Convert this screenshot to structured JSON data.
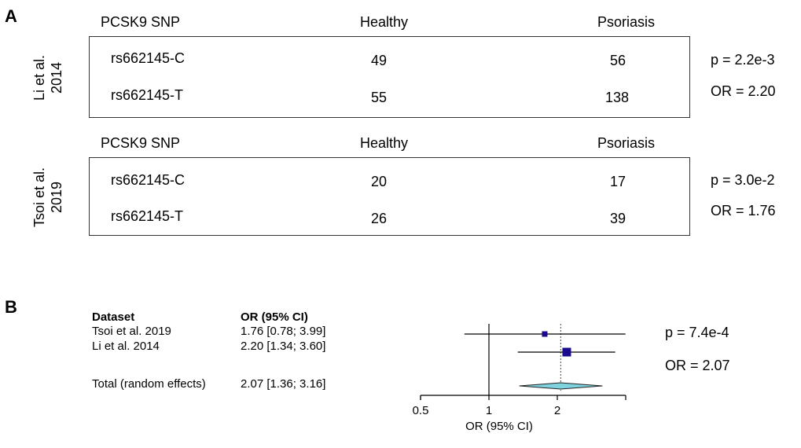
{
  "panel_a": {
    "letter": "A",
    "studies": [
      {
        "label_line1": "Li et al.",
        "label_line2": "2014",
        "col_snp": "PCSK9 SNP",
        "col_healthy": "Healthy",
        "col_psoriasis": "Psoriasis",
        "rows": [
          {
            "snp": "rs662145-C",
            "healthy": "49",
            "psoriasis": "56"
          },
          {
            "snp": "rs662145-T",
            "healthy": "55",
            "psoriasis": "138"
          }
        ],
        "p_text": "p = 2.2e-3",
        "or_text": "OR = 2.20"
      },
      {
        "label_line1": "Tsoi et al.",
        "label_line2": "2019",
        "col_snp": "PCSK9 SNP",
        "col_healthy": "Healthy",
        "col_psoriasis": "Psoriasis",
        "rows": [
          {
            "snp": "rs662145-C",
            "healthy": "20",
            "psoriasis": "17"
          },
          {
            "snp": "rs662145-T",
            "healthy": "26",
            "psoriasis": "39"
          }
        ],
        "p_text": "p = 3.0e-2",
        "or_text": "OR = 1.76"
      }
    ]
  },
  "panel_b": {
    "letter": "B",
    "col_dataset": "Dataset",
    "col_or": "OR (95% CI)",
    "rows": [
      {
        "dataset": "Tsoi et al. 2019",
        "or_ci": "1.76 [0.78; 3.99]"
      },
      {
        "dataset": "Li et al. 2014",
        "or_ci": "2.20 [1.34; 3.60]"
      }
    ],
    "total": {
      "dataset": "Total (random effects)",
      "or_ci": "2.07 [1.36; 3.16]"
    },
    "p_text": "p = 7.4e-4",
    "or_text": "OR = 2.07"
  },
  "chart_data": {
    "type": "forest",
    "scale": "log",
    "xlabel": "OR (95% CI)",
    "x_ticks": [
      0.5,
      1,
      2
    ],
    "x_tick_labels": [
      "0.5",
      "1",
      "2"
    ],
    "xlim": [
      0.5,
      4
    ],
    "null_value": 1,
    "studies": [
      {
        "name": "Tsoi et al. 2019",
        "or": 1.76,
        "lower": 0.78,
        "upper": 3.99,
        "weight": "small"
      },
      {
        "name": "Li et al. 2014",
        "or": 2.2,
        "lower": 1.34,
        "upper": 3.6,
        "weight": "large"
      }
    ],
    "pooled": {
      "name": "Total (random effects)",
      "or": 2.07,
      "lower": 1.36,
      "upper": 3.16
    },
    "colors": {
      "square": "#1a0a8c",
      "diamond": "#7fd3df",
      "diamond_edge": "#222222",
      "line": "#000000"
    }
  }
}
